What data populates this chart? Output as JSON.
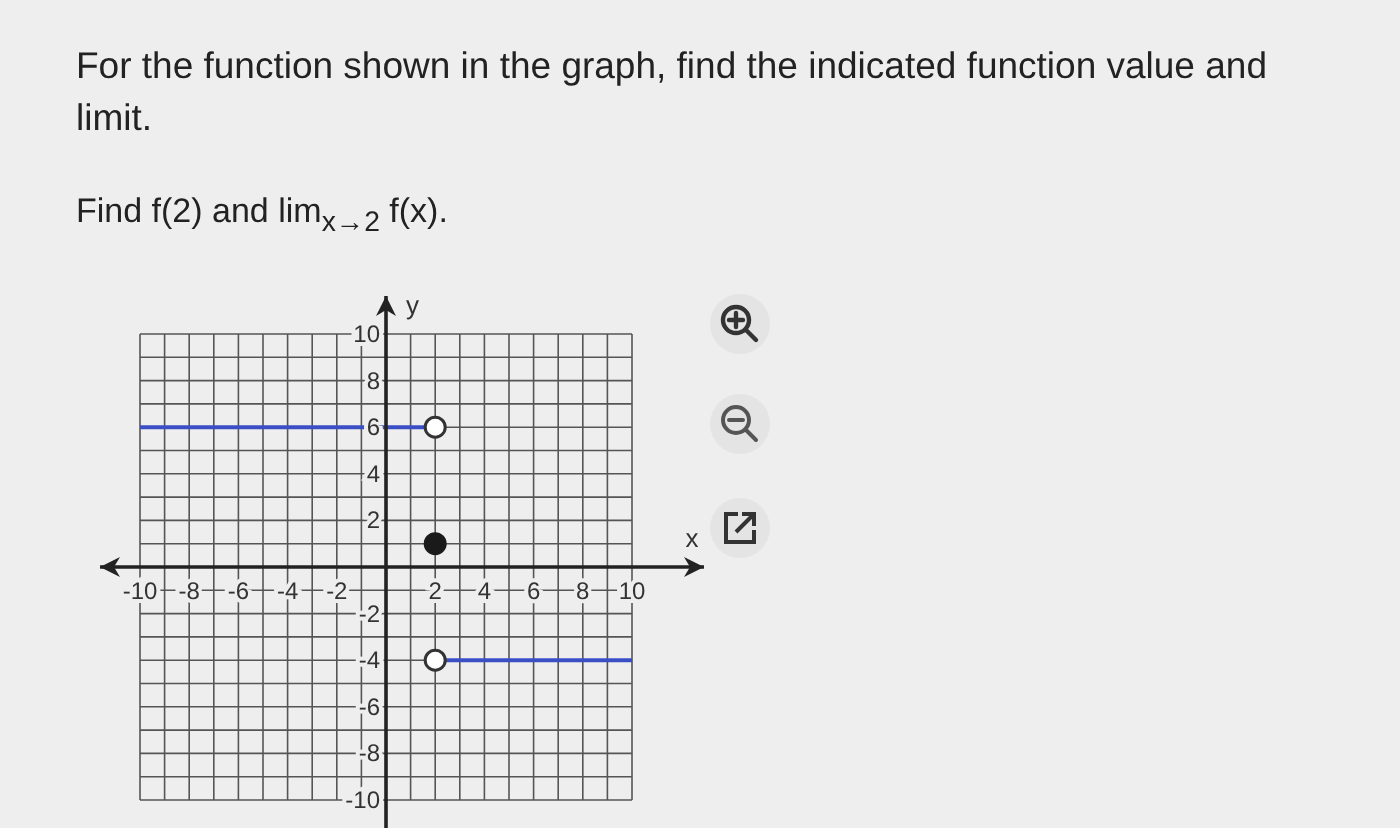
{
  "chart_data": {
    "type": "line",
    "title": "For the function shown in the graph, find the indicated function value and limit.",
    "subtitle": "Find f(2) and lim$_{x→2}$ f(x).",
    "xlabel": "x",
    "ylabel": "y",
    "xlim": [
      -10,
      10
    ],
    "ylim": [
      -10,
      10
    ],
    "xticks": [
      -10,
      -8,
      -6,
      -4,
      -2,
      2,
      4,
      6,
      8,
      10
    ],
    "yticks": [
      -10,
      -8,
      -6,
      -4,
      -2,
      2,
      4,
      6,
      8,
      10
    ],
    "grid": true,
    "series": [
      {
        "type": "line",
        "color": "#3b4fc4",
        "x": [
          -10,
          2
        ],
        "values": [
          6,
          6
        ]
      },
      {
        "type": "line",
        "color": "#3b4fc4",
        "x": [
          2,
          10
        ],
        "values": [
          -4,
          -4
        ]
      },
      {
        "type": "scatter",
        "color": "#333333",
        "colors": [
          "#ffffff",
          "#ffffff"
        ],
        "x": [
          2,
          2
        ],
        "values": [
          6,
          -4
        ]
      },
      {
        "type": "scatter",
        "color": "#1a1a1a",
        "colors": [
          "#1a1a1a"
        ],
        "x": [
          2
        ],
        "values": [
          1
        ]
      }
    ]
  }
}
